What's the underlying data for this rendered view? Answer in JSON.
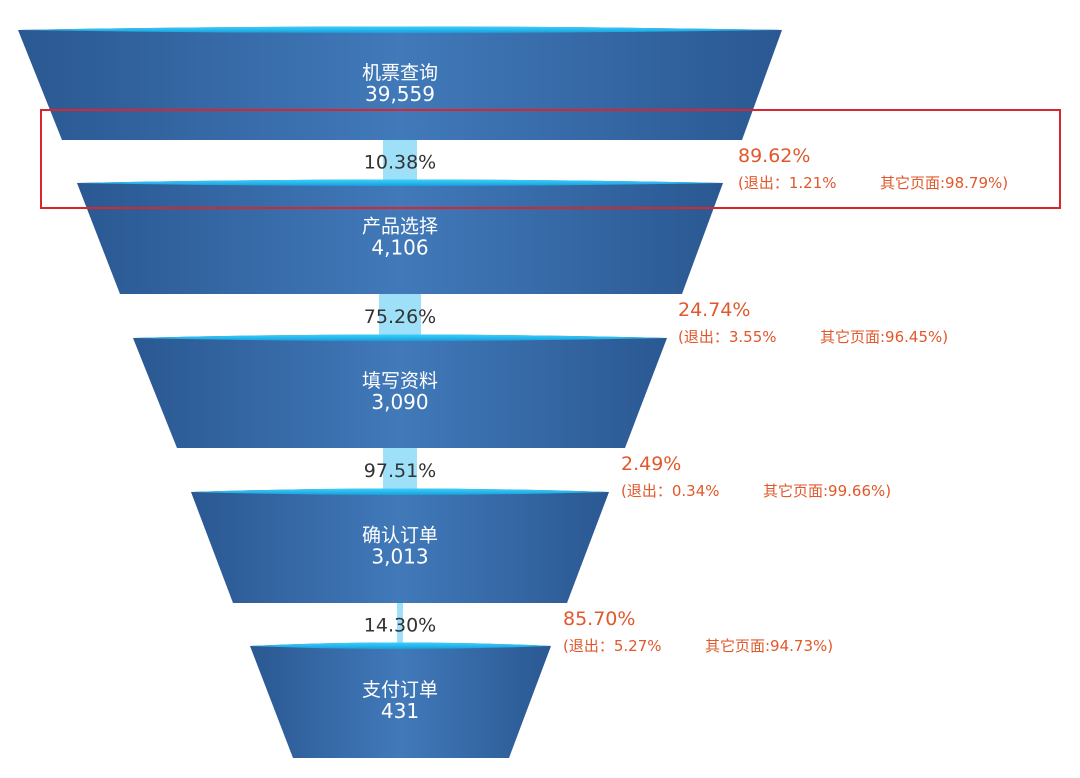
{
  "chart_data": {
    "type": "funnel",
    "stages": [
      {
        "name": "机票查询",
        "value_label": "39,559",
        "value": 39559
      },
      {
        "name": "产品选择",
        "value_label": "4,106",
        "value": 4106
      },
      {
        "name": "填写资料",
        "value_label": "3,090",
        "value": 3090
      },
      {
        "name": "确认订单",
        "value_label": "3,013",
        "value": 3013
      },
      {
        "name": "支付订单",
        "value_label": "431",
        "value": 431
      }
    ],
    "transitions": [
      {
        "conversion": "10.38%",
        "dropoff": "89.62%",
        "exit": "(退出：1.21%",
        "other": "其它页面:98.79%)"
      },
      {
        "conversion": "75.26%",
        "dropoff": "24.74%",
        "exit": "(退出：3.55%",
        "other": "其它页面:96.45%)"
      },
      {
        "conversion": "97.51%",
        "dropoff": "2.49%",
        "exit": "(退出：0.34%",
        "other": "其它页面:99.66%)"
      },
      {
        "conversion": "14.30%",
        "dropoff": "85.70%",
        "exit": "(退出：5.27%",
        "other": "其它页面:94.73%)"
      }
    ],
    "highlighted_transition": 1
  },
  "colors": {
    "funnel_dark": "#2c5c97",
    "funnel_mid": "#3f78b8",
    "funnel_top_rim": "#1fb8ee",
    "connector": "#9ee0f8",
    "dropoff_text": "#e0582b",
    "highlight_border": "#d8262c"
  }
}
